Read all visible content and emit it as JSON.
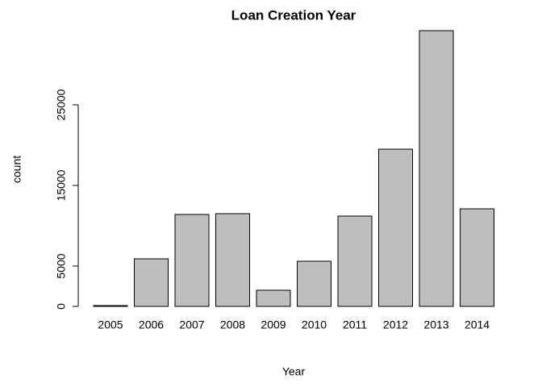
{
  "chart_data": {
    "type": "bar",
    "title": "Loan Creation Year",
    "xlabel": "Year",
    "ylabel": "count",
    "categories": [
      "2005",
      "2006",
      "2007",
      "2008",
      "2009",
      "2010",
      "2011",
      "2012",
      "2013",
      "2014"
    ],
    "values": [
      100,
      5900,
      11400,
      11500,
      2000,
      5600,
      11200,
      19500,
      34200,
      12100
    ],
    "color": "#bebebe",
    "ylim": [
      0,
      34200
    ],
    "yticks": [
      0,
      5000,
      15000,
      25000
    ],
    "grid": false
  }
}
